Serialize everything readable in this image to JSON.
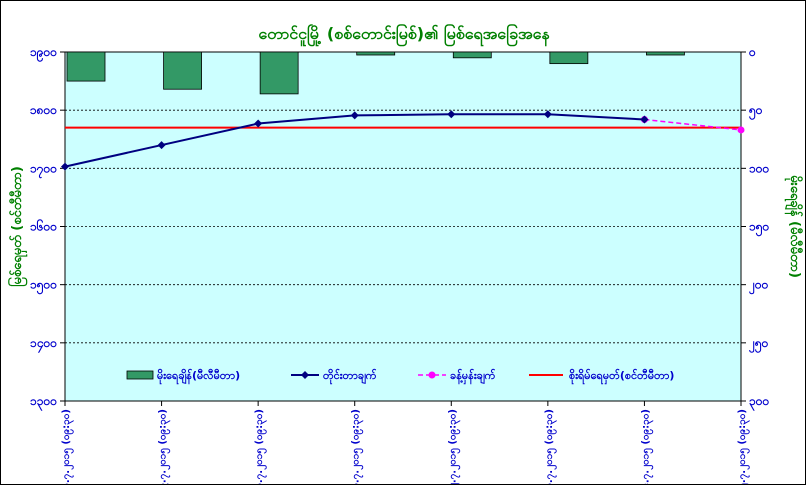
{
  "chart_data": {
    "type": "line",
    "title": "တောင်ငူမြို့ (စစ်တောင်းမြစ်)၏ မြစ်ရေအခြေအနေ",
    "ylabel_left": "မြစ်ရေမှတ် (စင်တီမီတာ)",
    "ylabel_right": "မိုးရေချိန် (မီလီမီတာ)",
    "categories": [
      "၁၈.၇.၂၀၁၅ (၀၉:၃၀)",
      "၁၉.၇.၂၀၁၅ (၀၉:၃၀)",
      "၂၀.၇.၂၀၁၅ (၀၉:၃၀)",
      "၂၁.၇.၂၀၁၅ (၀၉:၃၀)",
      "၂၂.၇.၂၀၁၅ (၀၉:၃၀)",
      "၂၃.၇.၂၀၁၅ (၀၉:၃၀)",
      "၂၄.၇.၂၀၁၅ (၀၉:၃၀)",
      "၂၅.၇.၂၀၁၅ (၀၉:၃၀)"
    ],
    "y_left_range": [
      1300,
      1900
    ],
    "y_left_ticks": [
      "၁၃၀၀",
      "၁၄၀၀",
      "၁၅၀၀",
      "၁၆၀၀",
      "၁၇၀၀",
      "၁၈၀၀",
      "၁၉၀၀"
    ],
    "y_right_range": [
      0,
      300
    ],
    "y_right_ticks": [
      "၀",
      "၅၀",
      "၁၀၀",
      "၁၅၀",
      "၂၀၀",
      "၂၅၀",
      "၃၀၀"
    ],
    "rainfall": {
      "name": "မိုးရေချိန်(မီလီမီတာ)",
      "values": [
        25,
        32,
        36,
        0,
        5,
        10,
        2,
        null
      ]
    },
    "observed": {
      "name": "တိုင်းတာချက်",
      "values": [
        1703,
        1740,
        1777,
        1791,
        1793,
        1793,
        1784,
        null
      ]
    },
    "forecast": {
      "name": "ခန့်မှန်းချက်",
      "values": [
        null,
        null,
        null,
        null,
        null,
        null,
        1784,
        1766
      ]
    },
    "danger": {
      "name": "စိုးရိမ်ရေမှတ်(စင်တီမီတာ)",
      "value": 1770
    },
    "colors": {
      "plot_bg": "#ccffff",
      "bars": "#339966",
      "observed": "#000080",
      "forecast": "#ff00ff",
      "danger": "#ff0000",
      "title": "#008000",
      "left_axis": "#0000cc",
      "right_axis": "#008000"
    },
    "legend_position": "bottom-inside"
  }
}
